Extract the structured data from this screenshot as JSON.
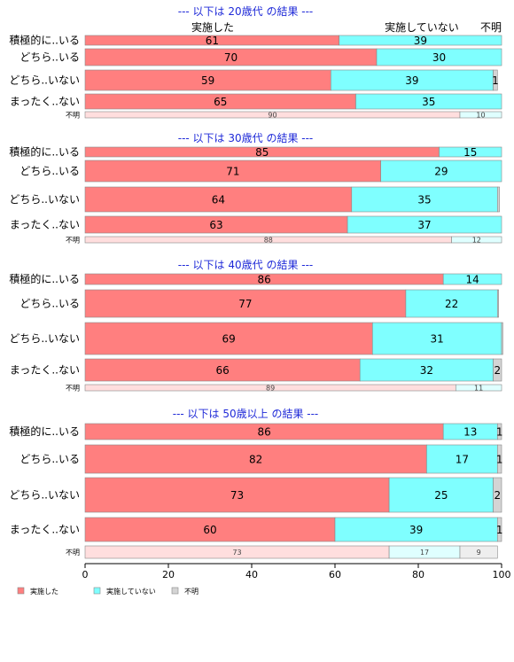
{
  "chart_data": {
    "type": "bar",
    "orientation": "horizontal",
    "stacked": true,
    "xlim": [
      0,
      100
    ],
    "x_ticks": [
      "0",
      "20",
      "40",
      "60",
      "80",
      "100"
    ],
    "column_headers": [
      "実施した",
      "実施していない",
      "不明"
    ],
    "series": [
      {
        "name": "実施した",
        "color": "#ff7f7f",
        "light_color": "#ffdede"
      },
      {
        "name": "実施していない",
        "color": "#7fffff",
        "light_color": "#dfffff"
      },
      {
        "name": "不明",
        "color": "#d4d4d4",
        "light_color": "#eeeeee"
      }
    ],
    "panels": [
      {
        "title": "--- 以下は 20歳代 の結果 ---",
        "rows": [
          {
            "label": "積極的に..いる",
            "values": [
              61,
              39,
              0
            ],
            "labels": [
              "61",
              "39",
              ""
            ]
          },
          {
            "label": "どちら..いる",
            "values": [
              70,
              30,
              0
            ],
            "labels": [
              "70",
              "30",
              ""
            ]
          },
          {
            "label": "どちら..いない",
            "values": [
              59,
              39,
              1
            ],
            "labels": [
              "59",
              "39",
              "1"
            ]
          },
          {
            "label": "まったく..ない",
            "values": [
              65,
              35,
              0
            ],
            "labels": [
              "65",
              "35",
              ""
            ]
          }
        ],
        "unknown": {
          "label": "不明",
          "values": [
            90,
            10,
            0
          ],
          "labels": [
            "90",
            "10",
            ""
          ]
        }
      },
      {
        "title": "--- 以下は 30歳代 の結果 ---",
        "rows": [
          {
            "label": "積極的に..いる",
            "values": [
              85,
              15,
              0
            ],
            "labels": [
              "85",
              "15",
              ""
            ]
          },
          {
            "label": "どちら..いる",
            "values": [
              71,
              29,
              0
            ],
            "labels": [
              "71",
              "29",
              ""
            ]
          },
          {
            "label": "どちら..いない",
            "values": [
              64,
              35,
              0.5
            ],
            "labels": [
              "64",
              "35",
              ""
            ]
          },
          {
            "label": "まったく..ない",
            "values": [
              63,
              37,
              0
            ],
            "labels": [
              "63",
              "37",
              ""
            ]
          }
        ],
        "unknown": {
          "label": "不明",
          "values": [
            88,
            12,
            0
          ],
          "labels": [
            "88",
            "12",
            ""
          ]
        }
      },
      {
        "title": "--- 以下は 40歳代 の結果 ---",
        "rows": [
          {
            "label": "積極的に..いる",
            "values": [
              86,
              14,
              0
            ],
            "labels": [
              "86",
              "14",
              ""
            ]
          },
          {
            "label": "どちら..いる",
            "values": [
              77,
              22,
              0.3
            ],
            "labels": [
              "77",
              "22",
              ""
            ]
          },
          {
            "label": "どちら..いない",
            "values": [
              69,
              31,
              0.3
            ],
            "labels": [
              "69",
              "31",
              ""
            ]
          },
          {
            "label": "まったく..ない",
            "values": [
              66,
              32,
              2
            ],
            "labels": [
              "66",
              "32",
              "2"
            ]
          }
        ],
        "unknown": {
          "label": "不明",
          "values": [
            89,
            11,
            0
          ],
          "labels": [
            "89",
            "11",
            ""
          ]
        }
      },
      {
        "title": "--- 以下は 50歳以上 の結果 ---",
        "rows": [
          {
            "label": "積極的に..いる",
            "values": [
              86,
              13,
              1
            ],
            "labels": [
              "86",
              "13",
              "1"
            ]
          },
          {
            "label": "どちら..いる",
            "values": [
              82,
              17,
              1
            ],
            "labels": [
              "82",
              "17",
              "1"
            ]
          },
          {
            "label": "どちら..いない",
            "values": [
              73,
              25,
              2
            ],
            "labels": [
              "73",
              "25",
              "2"
            ]
          },
          {
            "label": "まったく..ない",
            "values": [
              60,
              39,
              1
            ],
            "labels": [
              "60",
              "39",
              "1"
            ]
          }
        ],
        "unknown": {
          "label": "不明",
          "values": [
            73,
            17,
            9
          ],
          "labels": [
            "73",
            "17",
            "9"
          ]
        }
      }
    ],
    "legend": {
      "placement": "bottom-left",
      "items": [
        "実施した",
        "実施していない",
        "不明"
      ]
    }
  }
}
